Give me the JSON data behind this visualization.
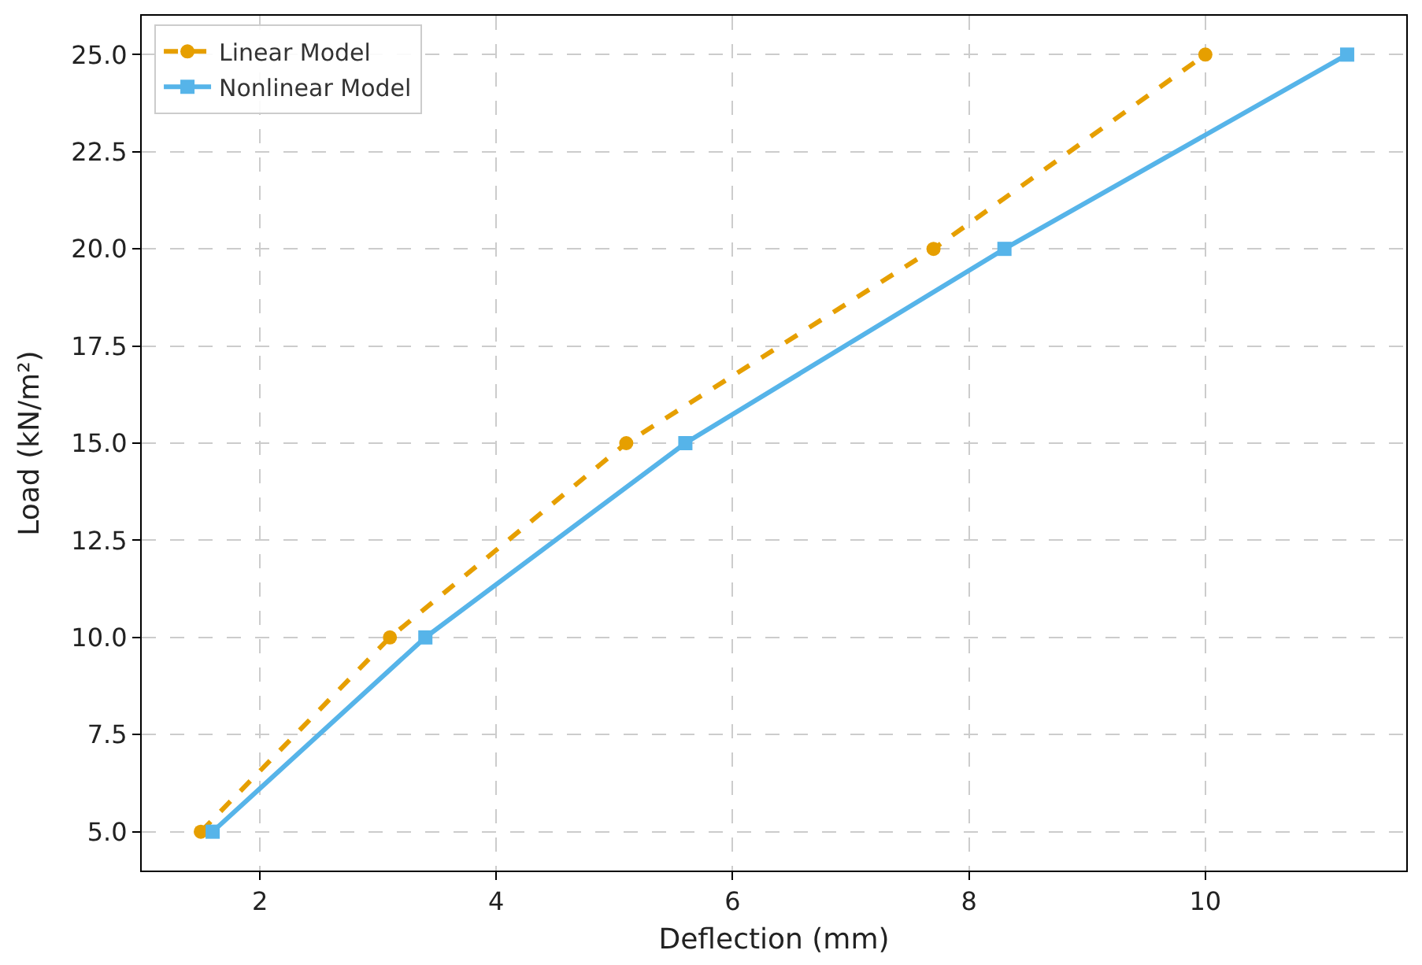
{
  "chart_data": {
    "type": "line",
    "xlabel": "Deflection (mm)",
    "ylabel": "Load (kN/m²)",
    "xlim": [
      1.0,
      11.7
    ],
    "xticks": [
      2,
      4,
      6,
      8,
      10
    ],
    "ylim": [
      4,
      26
    ],
    "yticks": [
      {
        "value": 5,
        "label": "5.0"
      },
      {
        "value": 7.5,
        "label": "7.5"
      },
      {
        "value": 10,
        "label": "10.0"
      },
      {
        "value": 12.5,
        "label": "12.5"
      },
      {
        "value": 15,
        "label": "15.0"
      },
      {
        "value": 17.5,
        "label": "17.5"
      },
      {
        "value": 20,
        "label": "20.0"
      },
      {
        "value": 22.5,
        "label": "22.5"
      },
      {
        "value": 25,
        "label": "25.0"
      }
    ],
    "grid": true,
    "legend": "top left",
    "series": [
      {
        "name": "Linear Model",
        "color": "#e69f00",
        "x": [
          1.5,
          3.1,
          5.1,
          7.7,
          10.0
        ],
        "values": [
          5,
          10,
          15,
          20,
          25
        ],
        "marker": "circle",
        "line_style": "dashed"
      },
      {
        "name": "Nonlinear Model",
        "color": "#56b4e9",
        "x": [
          1.6,
          3.4,
          5.6,
          8.3,
          11.2
        ],
        "values": [
          5,
          10,
          15,
          20,
          25
        ],
        "marker": "square",
        "line_style": "solid"
      }
    ]
  }
}
